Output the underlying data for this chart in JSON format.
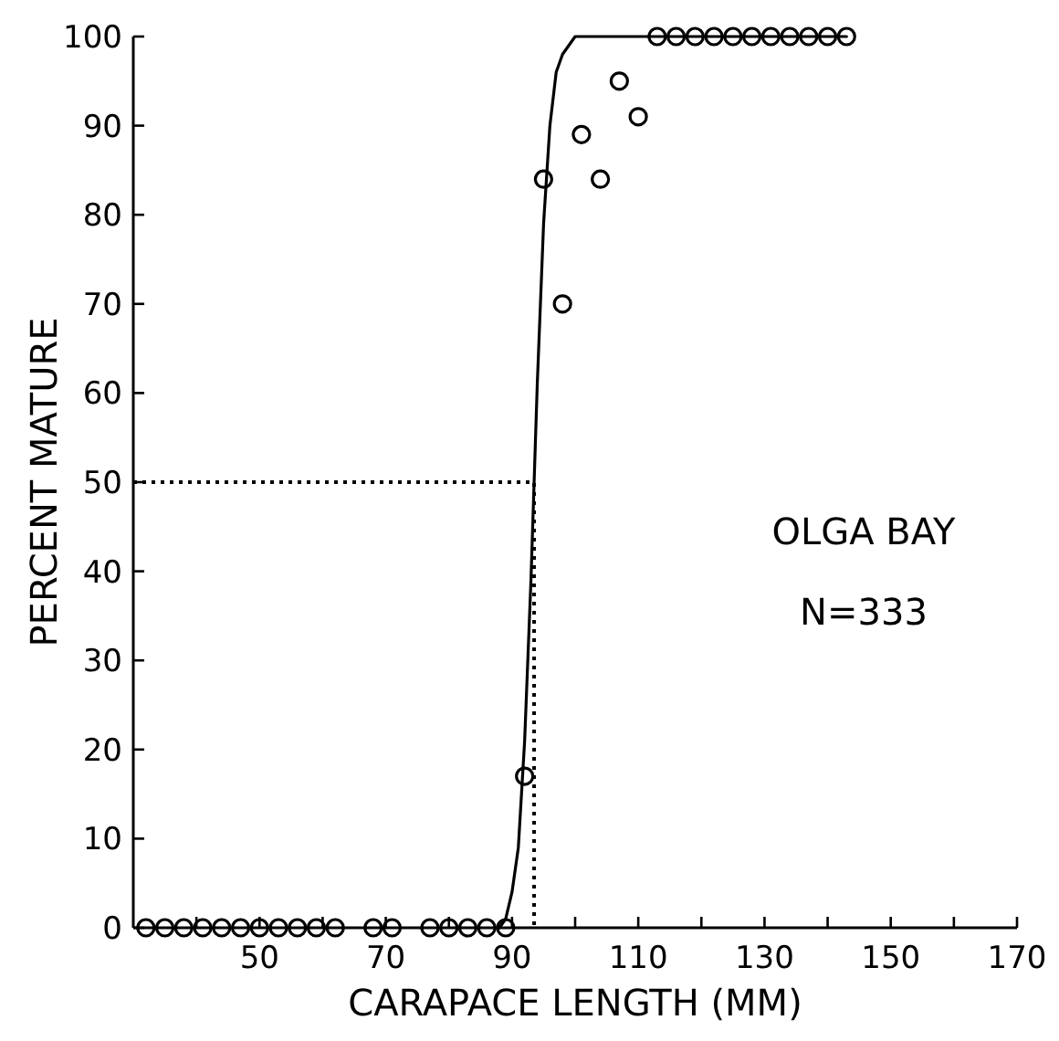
{
  "chart_data": {
    "type": "scatter",
    "xlabel": "CARAPACE LENGTH (MM)",
    "ylabel": "PERCENT MATURE",
    "xlim": [
      30,
      170
    ],
    "ylim": [
      0,
      100
    ],
    "xticks": [
      {
        "value": 40,
        "label": null
      },
      50,
      {
        "value": 60,
        "label": null
      },
      70,
      {
        "value": 80,
        "label": null
      },
      90,
      {
        "value": 100,
        "label": null
      },
      110,
      {
        "value": 120,
        "label": null
      },
      130,
      {
        "value": 140,
        "label": null
      },
      150,
      {
        "value": 160,
        "label": null
      },
      170
    ],
    "yticks": [
      0,
      10,
      20,
      30,
      40,
      50,
      60,
      70,
      80,
      90,
      100
    ],
    "grid": false,
    "marker": "circle",
    "series": [
      {
        "color": "#000000",
        "x": [
          32,
          35,
          38,
          41,
          44,
          47,
          50,
          53,
          56,
          59,
          62,
          68,
          71,
          77,
          80,
          83,
          86,
          89,
          92,
          95,
          98,
          101,
          104,
          107,
          110,
          113,
          116,
          119,
          122,
          125,
          128,
          131,
          134,
          137,
          140,
          143
        ],
        "values": [
          0,
          0,
          0,
          0,
          0,
          0,
          0,
          0,
          0,
          0,
          0,
          0,
          0,
          0,
          0,
          0,
          0,
          0,
          17,
          84,
          70,
          89,
          84,
          95,
          91,
          100,
          100,
          100,
          100,
          100,
          100,
          100,
          100,
          100,
          100,
          100
        ]
      },
      {
        "type": "line",
        "color": "#000000",
        "marker": "none",
        "line_style": "solid",
        "x": [
          88,
          89,
          90,
          91,
          92,
          93,
          93.5,
          94,
          95,
          96,
          97,
          98,
          99,
          100,
          102,
          143
        ],
        "values": [
          0,
          1,
          4,
          9,
          21,
          39,
          50,
          61,
          79,
          90,
          96,
          98,
          99,
          100,
          100,
          100
        ]
      },
      {
        "type": "line",
        "color": "#000000",
        "marker": "none",
        "line_style": "dotted",
        "x": [
          30,
          93.5,
          93.5
        ],
        "values": [
          50,
          50,
          0
        ]
      }
    ],
    "annotations": [
      "OLGA BAY",
      "N=333"
    ]
  }
}
